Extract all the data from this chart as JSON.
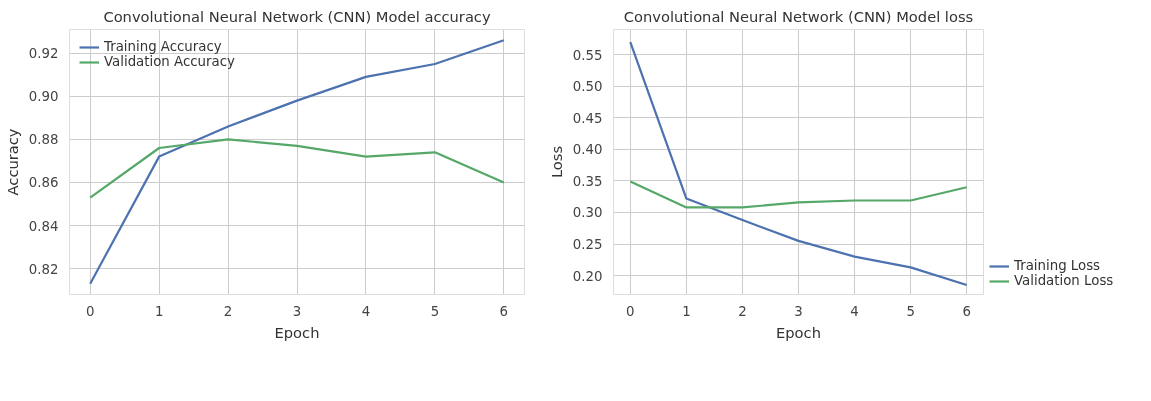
{
  "chart_data": [
    {
      "type": "line",
      "title": "Convolutional Neural Network (CNN) Model accuracy",
      "xlabel": "Epoch",
      "ylabel": "Accuracy",
      "x": [
        0,
        1,
        2,
        3,
        4,
        5,
        6
      ],
      "xlim": [
        -0.3,
        6.3
      ],
      "xticks": [
        0,
        1,
        2,
        3,
        4,
        5,
        6
      ],
      "ylim": [
        0.808,
        0.931
      ],
      "yticks": [
        0.82,
        0.84,
        0.86,
        0.88,
        {
          "value": 0.9,
          "label": "0.90"
        },
        0.92
      ],
      "grid": true,
      "legend": "top left",
      "line_style": "solid",
      "series": [
        {
          "name": "Training Accuracy",
          "color": "#4c72b0",
          "values": [
            0.813,
            0.872,
            0.886,
            0.898,
            0.909,
            0.915,
            0.926
          ]
        },
        {
          "name": "Validation Accuracy",
          "color": "#55a868",
          "values": [
            0.853,
            0.876,
            0.88,
            0.877,
            0.872,
            0.874,
            0.86
          ]
        }
      ]
    },
    {
      "type": "line",
      "title": "Convolutional Neural Network (CNN) Model loss",
      "xlabel": "Epoch",
      "ylabel": "Loss",
      "x": [
        0,
        1,
        2,
        3,
        4,
        5,
        6
      ],
      "xlim": [
        -0.3,
        6.3
      ],
      "xticks": [
        0,
        1,
        2,
        3,
        4,
        5,
        6
      ],
      "ylim": [
        0.17,
        0.59
      ],
      "yticks": [
        {
          "value": 0.2,
          "label": "0.20"
        },
        0.25,
        {
          "value": 0.3,
          "label": "0.30"
        },
        0.35,
        {
          "value": 0.4,
          "label": "0.40"
        },
        0.45,
        {
          "value": 0.5,
          "label": "0.50"
        },
        0.55
      ],
      "grid": true,
      "legend": "bottom right",
      "line_style": "solid",
      "series": [
        {
          "name": "Training Loss",
          "color": "#4c72b0",
          "values": [
            0.57,
            0.322,
            0.288,
            0.255,
            0.23,
            0.213,
            0.185
          ]
        },
        {
          "name": "Validation Loss",
          "color": "#55a868",
          "values": [
            0.349,
            0.308,
            0.308,
            0.316,
            0.319,
            0.319,
            0.34
          ]
        }
      ]
    }
  ]
}
